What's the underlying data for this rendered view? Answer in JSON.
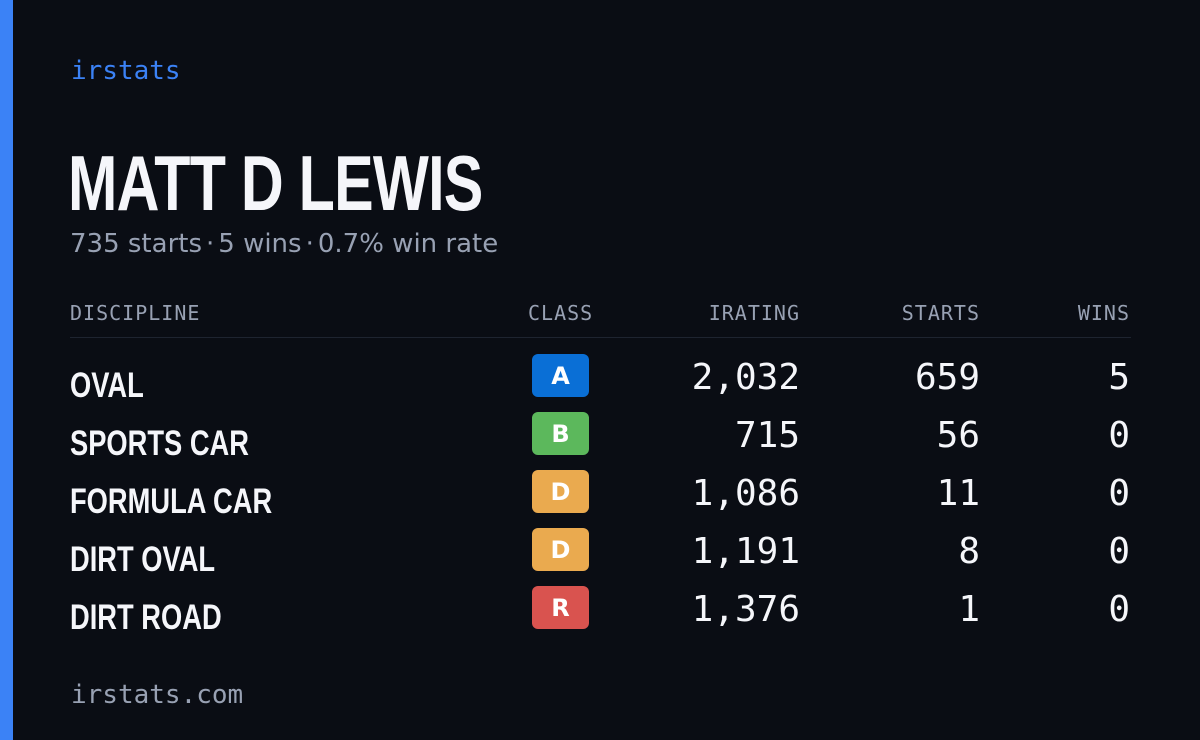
{
  "brand": "irstats",
  "driver": {
    "name": "MATT D LEWIS",
    "starts": "735 starts",
    "wins": "5 wins",
    "win_rate": "0.7% win rate",
    "separator": "·"
  },
  "table": {
    "headers": {
      "discipline": "DISCIPLINE",
      "class": "CLASS",
      "irating": "IRATING",
      "starts": "STARTS",
      "wins": "WINS"
    },
    "rows": [
      {
        "discipline": "OVAL",
        "class": "A",
        "class_color": "#0a6fd6",
        "irating": "2,032",
        "starts": "659",
        "wins": "5"
      },
      {
        "discipline": "SPORTS CAR",
        "class": "B",
        "class_color": "#5cb85c",
        "irating": "715",
        "starts": "56",
        "wins": "0"
      },
      {
        "discipline": "FORMULA CAR",
        "class": "D",
        "class_color": "#eaaa4f",
        "irating": "1,086",
        "starts": "11",
        "wins": "0"
      },
      {
        "discipline": "DIRT OVAL",
        "class": "D",
        "class_color": "#eaaa4f",
        "irating": "1,191",
        "starts": "8",
        "wins": "0"
      },
      {
        "discipline": "DIRT ROAD",
        "class": "R",
        "class_color": "#d9534f",
        "irating": "1,376",
        "starts": "1",
        "wins": "0"
      }
    ]
  },
  "footer": "irstats.com",
  "colors": {
    "background": "#0a0d14",
    "accent": "#3b82f6",
    "muted_text": "#98a1b3",
    "primary_text": "#f5f6fa"
  }
}
